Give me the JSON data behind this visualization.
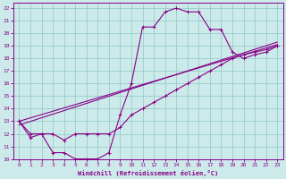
{
  "xlabel": "Windchill (Refroidissement éolien,°C)",
  "background_color": "#cdeaea",
  "line_color": "#880088",
  "grid_color": "#99cccc",
  "axis_color": "#880088",
  "xlim": [
    -0.5,
    23.5
  ],
  "ylim": [
    10,
    22.4
  ],
  "xticks": [
    0,
    1,
    2,
    3,
    4,
    5,
    6,
    7,
    8,
    9,
    10,
    11,
    12,
    13,
    14,
    15,
    16,
    17,
    18,
    19,
    20,
    21,
    22,
    23
  ],
  "yticks": [
    10,
    11,
    12,
    13,
    14,
    15,
    16,
    17,
    18,
    19,
    20,
    21,
    22
  ],
  "curve1_x": [
    0,
    1,
    2,
    3,
    4,
    5,
    6,
    7,
    8,
    9,
    10,
    11,
    12,
    13,
    14,
    15,
    16,
    17,
    18,
    19,
    20,
    21,
    22,
    23
  ],
  "curve1_y": [
    13.0,
    11.7,
    12.0,
    10.5,
    10.5,
    10.0,
    10.0,
    10.0,
    10.5,
    13.5,
    16.0,
    20.5,
    20.5,
    21.7,
    22.0,
    21.7,
    21.7,
    20.3,
    20.3,
    18.5,
    18.0,
    18.3,
    18.5,
    19.0
  ],
  "curve2_x": [
    0,
    1,
    2,
    3,
    4,
    5,
    6,
    7,
    8,
    9,
    10,
    11,
    12,
    13,
    14,
    15,
    16,
    17,
    18,
    19,
    20,
    21,
    22,
    23
  ],
  "curve2_y": [
    13.0,
    12.0,
    12.0,
    12.0,
    11.5,
    12.0,
    12.0,
    12.0,
    12.0,
    12.5,
    13.5,
    14.0,
    14.5,
    15.0,
    15.5,
    16.0,
    16.5,
    17.0,
    17.5,
    18.0,
    18.3,
    18.5,
    18.7,
    19.0
  ],
  "line3_x": [
    0,
    23
  ],
  "line3_y": [
    12.7,
    19.3
  ],
  "line4_x": [
    0,
    23
  ],
  "line4_y": [
    13.0,
    19.1
  ]
}
